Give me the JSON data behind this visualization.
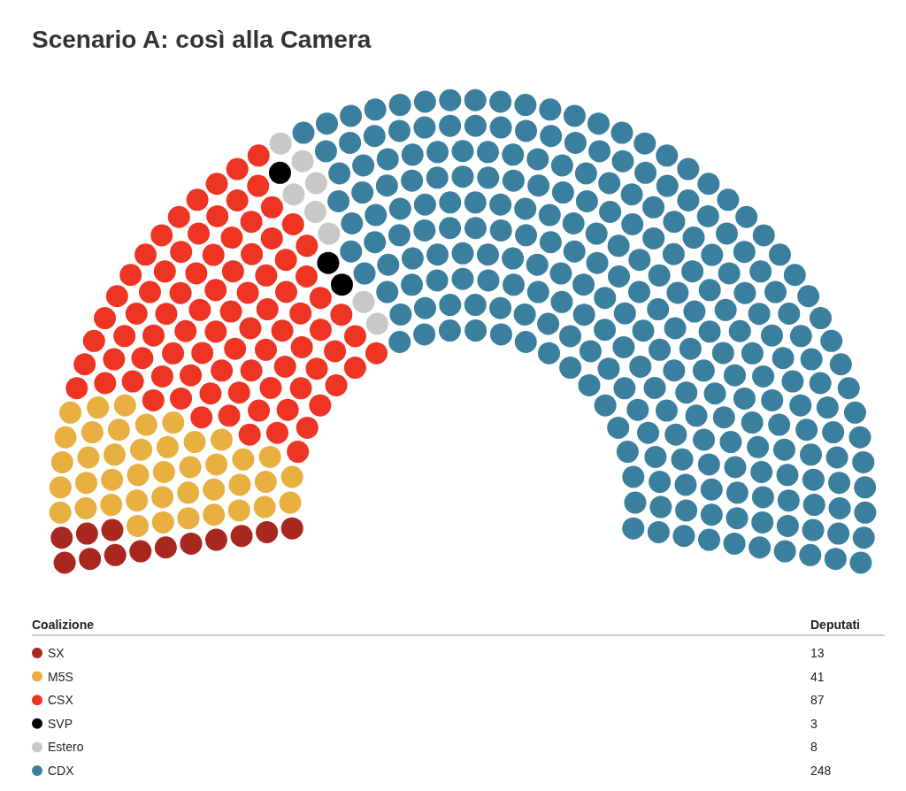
{
  "chart_data": {
    "type": "other",
    "title": "Scenario A: così alla Camera",
    "legend_title": "Coalizione",
    "annotations": [
      "Deputati"
    ],
    "data_labels": true,
    "categories": [
      "SX",
      "M5S",
      "CSX",
      "SVP",
      "Estero",
      "CDX"
    ],
    "values": [
      13,
      41,
      87,
      3,
      8,
      248
    ],
    "colors": [
      "#a8271f",
      "#e8b040",
      "#ee3524",
      "#000000",
      "#c8c8c8",
      "#3a7f9e"
    ]
  }
}
